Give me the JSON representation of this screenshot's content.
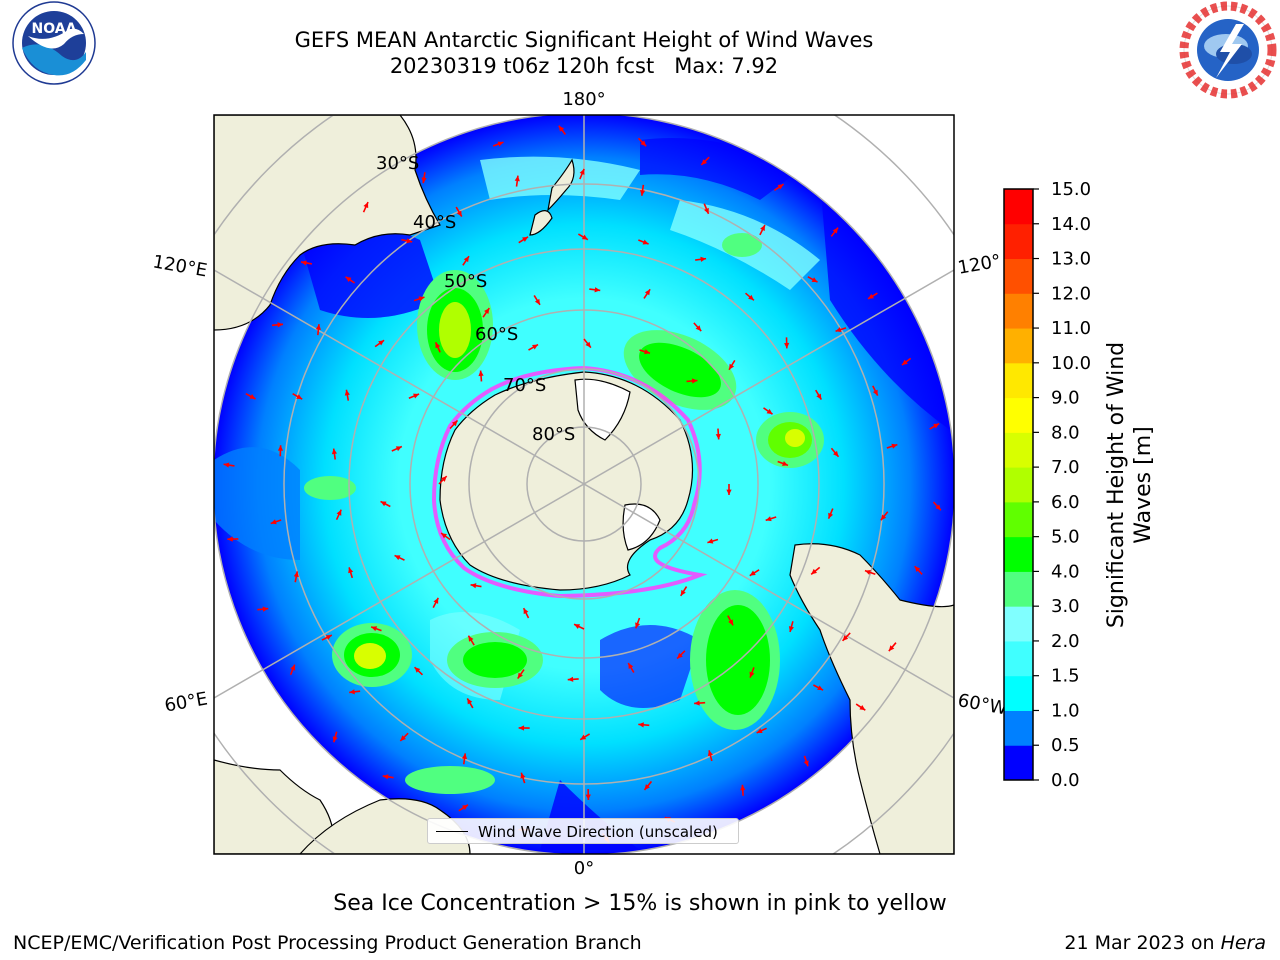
{
  "header": {
    "title_line1": "GEFS MEAN Antarctic Significant Height of Wind Waves",
    "title_line2": "20230319 t06z 120h fcst   Max: 7.92"
  },
  "logos": {
    "left": {
      "icon": "noaa-logo-icon",
      "text": "NOAA",
      "ring_text": "NATIONAL OCEANIC AND ATMOSPHERIC ADMINISTRATION · U.S. DEPARTMENT OF COMMERCE"
    },
    "right": {
      "icon": "nws-logo-icon",
      "ring_text": "NATIONAL WEATHER SERVICE"
    }
  },
  "map": {
    "projection": "south-polar-stereographic",
    "latitude_labels": [
      "30°S",
      "40°S",
      "50°S",
      "60°S",
      "70°S",
      "80°S"
    ],
    "longitude_labels": {
      "top": "180°",
      "left_upper": "120°E",
      "left_lower": "60°E",
      "right_upper": "120°",
      "right_lower": "60°W",
      "bottom": "0°"
    },
    "colors": {
      "ocean_low": "#0000ff",
      "land": "#efefdb",
      "gridline": "#b0b0b0",
      "arrow": "#ff0000",
      "ice_edge": "#ff40ff"
    },
    "legend": {
      "label": "Wind Wave Direction (unscaled)"
    }
  },
  "colorbar": {
    "label": "Significant Height of Wind Waves [m]",
    "label_line1": "Significant Height of Wind",
    "label_line2": "Waves [m]",
    "ticks": [
      "15.0",
      "14.0",
      "13.0",
      "12.0",
      "11.0",
      "10.0",
      "9.0",
      "8.0",
      "7.0",
      "6.0",
      "5.0",
      "4.0",
      "3.0",
      "2.0",
      "1.5",
      "1.0",
      "0.5",
      "0.0"
    ],
    "colors_bottom_to_top": [
      "#0000ff",
      "#0080ff",
      "#00ffff",
      "#40ffff",
      "#80ffff",
      "#50ff80",
      "#00ff00",
      "#60ff00",
      "#b0ff00",
      "#d8ff00",
      "#ffff00",
      "#ffe800",
      "#ffb000",
      "#ff8000",
      "#ff5000",
      "#ff2000",
      "#ff0000"
    ]
  },
  "footnote": "Sea Ice Concentration > 15% is shown in pink to yellow",
  "footer": {
    "left": "NCEP/EMC/Verification Post Processing Product Generation Branch",
    "right_prefix": "21 Mar 2023 on ",
    "right_machine": "Hera"
  }
}
